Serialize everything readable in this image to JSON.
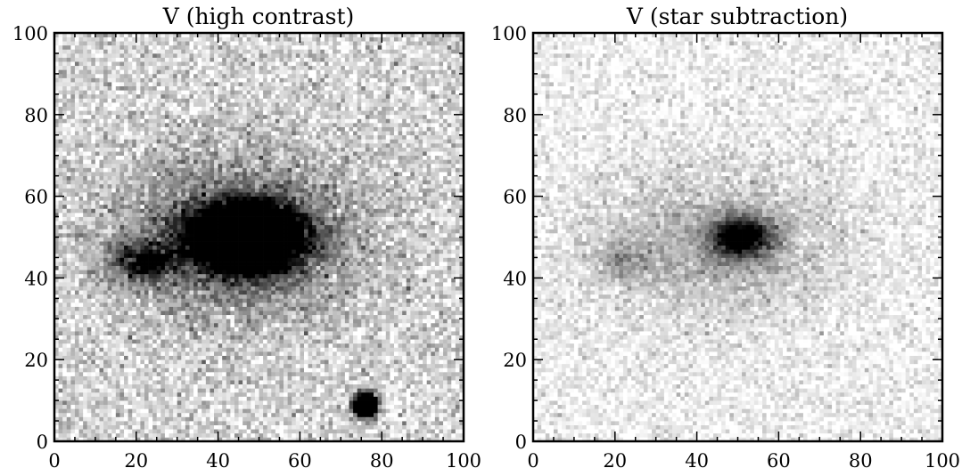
{
  "chart_data": [
    {
      "type": "heatmap",
      "title": "V (high contrast)",
      "colormap": "gray_r",
      "xlim": [
        0,
        100
      ],
      "ylim": [
        0,
        100
      ],
      "xticks": [
        "0",
        "20",
        "40",
        "60",
        "80",
        "100"
      ],
      "yticks": [
        "0",
        "20",
        "40",
        "60",
        "80",
        "100"
      ],
      "grid": false,
      "features": [
        {
          "kind": "galaxy-core",
          "x": 47,
          "y": 50,
          "sigma_x": 8,
          "sigma_y": 5,
          "peak": 2.4
        },
        {
          "kind": "galaxy-halo",
          "x": 45,
          "y": 50,
          "sigma_x": 20,
          "sigma_y": 13,
          "peak": 0.55
        },
        {
          "kind": "galaxy-arm",
          "x": 22,
          "y": 44,
          "sigma_x": 5,
          "sigma_y": 3,
          "peak": 0.8
        },
        {
          "kind": "star",
          "x": 76,
          "y": 9,
          "sigma_x": 1.8,
          "sigma_y": 1.8,
          "peak": 3.0
        }
      ]
    },
    {
      "type": "heatmap",
      "title": "V (star subtraction)",
      "colormap": "gray_r",
      "xlim": [
        0,
        100
      ],
      "ylim": [
        0,
        100
      ],
      "xticks": [
        "0",
        "20",
        "40",
        "60",
        "80",
        "100"
      ],
      "yticks": [
        "0",
        "20",
        "40",
        "60",
        "80",
        "100"
      ],
      "grid": false,
      "features": [
        {
          "kind": "galaxy-core",
          "x": 51,
          "y": 50,
          "sigma_x": 5,
          "sigma_y": 3.5,
          "peak": 1.0
        },
        {
          "kind": "galaxy-halo",
          "x": 45,
          "y": 48,
          "sigma_x": 20,
          "sigma_y": 12,
          "peak": 0.28
        },
        {
          "kind": "galaxy-arm",
          "x": 22,
          "y": 44,
          "sigma_x": 4,
          "sigma_y": 3,
          "peak": 0.3
        }
      ]
    }
  ]
}
